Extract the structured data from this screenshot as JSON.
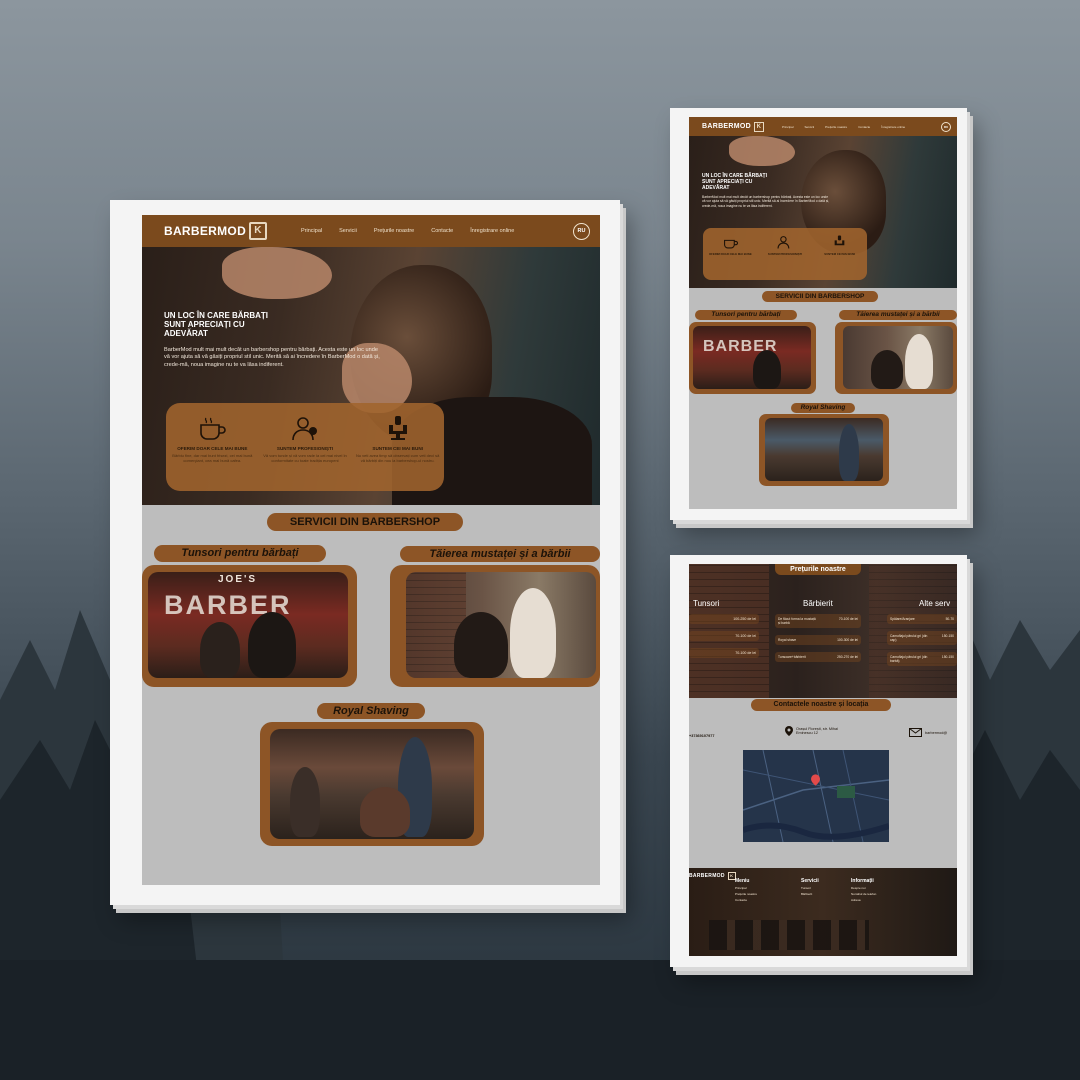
{
  "brand": {
    "name": "BARBERMOD",
    "logo_mark": "K"
  },
  "nav": {
    "items": [
      "Principal",
      "Servicii",
      "Prețurile noastre",
      "Contacte",
      "Înregistrare online"
    ],
    "lang_button": "RU"
  },
  "hero": {
    "title": "UN LOC ÎN CARE  BĂRBAȚI SUNT APRECIAȚI CU ADEVĂRAT",
    "text": "BarberMod mult mai mult decât  un barbershop pentru bărbați. Acesta este un loc unde vă vor ajuta să vă găsiți propriul stil unic. Merită să ai încredere în BarberMod o dată și, crede-mă, noua imagine nu te va lăsa indiferent."
  },
  "features": [
    {
      "icon": "coffee-cup-icon",
      "title": "OFERIM DOAR CELE MAI BUNE",
      "text": "Bărbiu fine, dar mai bunt frisezi, cei mai bună comerçiant, cea mai bună cafea."
    },
    {
      "icon": "professional-badge-icon",
      "title": "SUNTEM PROFESIONIȘTI",
      "text": "Vă vom tunde și vă vom rade la cel mai nivel în conformitate cu toate tradiția europeni"
    },
    {
      "icon": "barber-chair-icon",
      "title": "SUNTEM CEI MAI BUNI",
      "text": "Nu veti avea timp să observați cum veti deci să vă bărbiți din nou la barbershop-ul nostru."
    }
  ],
  "services": {
    "title": "SERVICII DIN BARBERSHOP",
    "items": [
      "Tunsori pentru bărbați",
      "Tăierea mustaței și a bărbii",
      "Royal Shaving"
    ],
    "shop_sign": "BARBER",
    "shop_sign_small": "JOE'S"
  },
  "prices": {
    "title": "Prețurile noastre",
    "columns": [
      {
        "name": "Tunsori",
        "rows": [
          [
            "",
            "100-250 de lei"
          ],
          [
            "",
            "70-100 de lei"
          ],
          [
            "",
            "70-100 de lei"
          ]
        ]
      },
      {
        "name": "Bărbierit",
        "rows": [
          [
            "De făcut forma la mustață și barbă",
            "70-100 de lei"
          ],
          [
            "Royal shave",
            "100-300 de lei"
          ],
          [
            "Tunsoare+bărbierit",
            "250-270 de lei"
          ]
        ]
      },
      {
        "name": "Alte serv",
        "rows": [
          [
            "Spălare/Aranjare",
            "50-70"
          ],
          [
            "Camuflajul părului gri (din cap)",
            "150-150"
          ],
          [
            "Camuflajul părului gri (din barbă)",
            "150-150"
          ]
        ]
      }
    ]
  },
  "contacts": {
    "title": "Contactele noastre și locația",
    "phone": "+37369107977",
    "address": "Orașul Florești, str. Mihai Eminescu 12",
    "email": "barbermod@"
  },
  "footer": {
    "columns": [
      {
        "title": "Meniu",
        "items": [
          "Principal",
          "Prețurile noastre",
          "Contacte"
        ]
      },
      {
        "title": "Servicii",
        "items": [
          "Tunsori",
          "Bărbierit"
        ]
      },
      {
        "title": "Informații",
        "items": [
          "Despre noi",
          "Numărul de telefon",
          "Adresa"
        ]
      }
    ]
  },
  "colors": {
    "accent": "#8d5526",
    "header": "#7b4a1d",
    "page_bg": "#bdbdbd"
  }
}
